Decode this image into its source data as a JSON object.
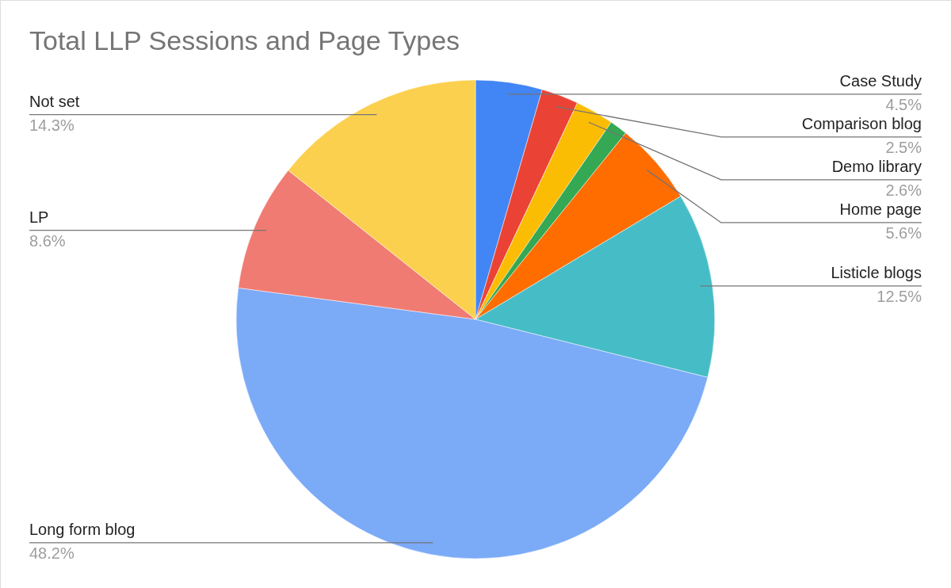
{
  "chart_data": {
    "type": "pie",
    "title": "Total LLP Sessions and Page Types",
    "categories": [
      "Case Study",
      "Comparison blog",
      "Demo library",
      null,
      "Home page",
      "Listicle blogs",
      "Long form blog",
      "LP",
      "Not set"
    ],
    "values": [
      4.5,
      2.5,
      2.6,
      1.2,
      5.6,
      12.5,
      48.2,
      8.6,
      14.3
    ],
    "value_labels": [
      "4.5%",
      "2.5%",
      "2.6%",
      null,
      "5.6%",
      "12.5%",
      "48.2%",
      "8.6%",
      "14.3%"
    ],
    "colors": [
      "#4285f4",
      "#ea4335",
      "#fbbc04",
      "#34a853",
      "#ff6d01",
      "#46bdc6",
      "#7baaf7",
      "#f07b72",
      "#fcd04f"
    ]
  }
}
